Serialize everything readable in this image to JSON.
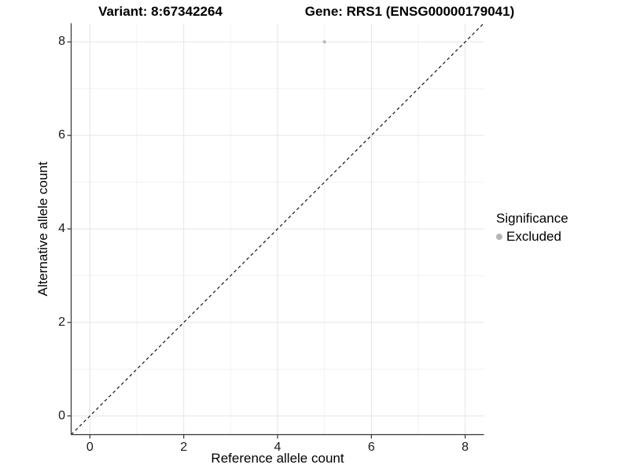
{
  "chart_data": {
    "type": "scatter",
    "title_left": "Variant: 8:67342264",
    "title_right": "Gene: RRS1 (ENSG00000179041)",
    "xlabel": "Reference allele count",
    "ylabel": "Alternative allele count",
    "xlim": [
      -0.4,
      8.4
    ],
    "ylim": [
      -0.4,
      8.4
    ],
    "x_major_ticks": [
      0,
      2,
      4,
      6,
      8
    ],
    "x_minor_ticks": [
      1,
      3,
      5,
      7
    ],
    "y_major_ticks": [
      0,
      2,
      4,
      6,
      8
    ],
    "y_minor_ticks": [
      1,
      3,
      5,
      7
    ],
    "grid": "major and minor gridlines on white background",
    "identity_line": {
      "style": "dashed",
      "x1": -0.4,
      "y1": -0.4,
      "x2": 8.4,
      "y2": 8.4
    },
    "series": [
      {
        "name": "Excluded",
        "color": "#BDBDBD",
        "point_radius": 2.2,
        "points": [
          [
            5,
            8
          ]
        ]
      }
    ],
    "legend": {
      "title": "Significance",
      "position": "right",
      "entries": [
        {
          "label": "Excluded",
          "color": "#B5B5B5"
        }
      ]
    },
    "colors": {
      "background": "#FFFFFF",
      "grid_major": "#E5E5E5",
      "grid_minor": "#F2F2F2",
      "axis_line": "#333333",
      "tick_mark": "#333333",
      "dashed_line": "#000000",
      "text": "#000000"
    }
  }
}
